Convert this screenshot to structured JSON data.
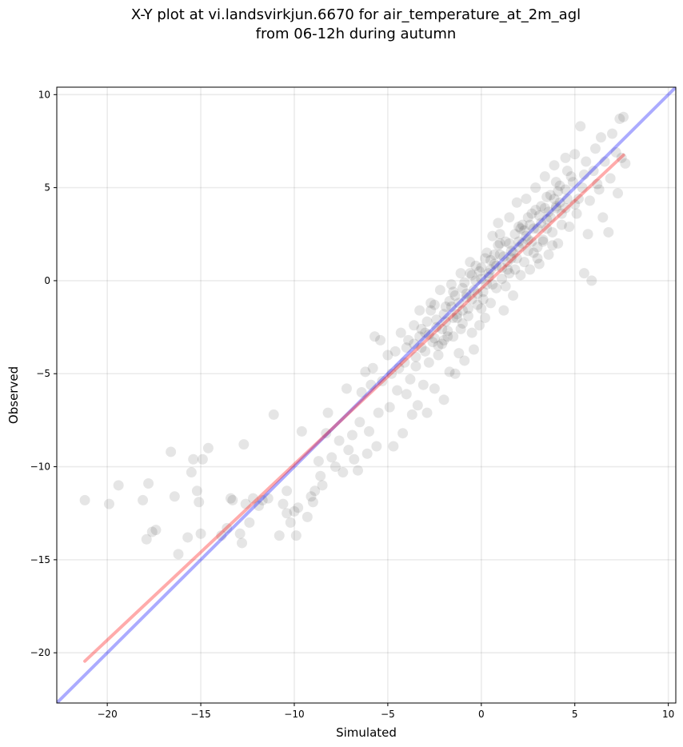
{
  "chart_data": {
    "type": "scatter",
    "title": [
      "X-Y plot at vi.landsvirkjun.6670 for air_temperature_at_2m_agl",
      "from 06-12h during autumn"
    ],
    "xlabel": "Simulated",
    "ylabel": "Observed",
    "xlim": [
      -22.7,
      10.4
    ],
    "ylim": [
      -22.7,
      10.4
    ],
    "xticks": [
      -20,
      -15,
      -10,
      -5,
      0,
      5,
      10
    ],
    "yticks": [
      -20,
      -15,
      -10,
      -5,
      0,
      5,
      10
    ],
    "xtick_labels": [
      "−20",
      "−15",
      "−10",
      "−5",
      "0",
      "5",
      "10"
    ],
    "ytick_labels": [
      "−20",
      "−15",
      "−10",
      "−5",
      "0",
      "5",
      "10"
    ],
    "grid": true,
    "point_color": "#000000",
    "point_alpha": 0.1,
    "reference_line": {
      "color": "#0000ff",
      "alpha": 0.33,
      "x": [
        -22.7,
        10.4
      ],
      "y": [
        -22.7,
        10.4
      ]
    },
    "fit_line": {
      "color": "#ff0000",
      "alpha": 0.33,
      "x": [
        -21.2,
        7.6
      ],
      "y": [
        -20.45,
        6.75
      ]
    },
    "points": [
      [
        -21.2,
        -11.8
      ],
      [
        -19.9,
        -12.0
      ],
      [
        -19.4,
        -11.0
      ],
      [
        -18.1,
        -11.8
      ],
      [
        -17.8,
        -10.9
      ],
      [
        -17.9,
        -13.9
      ],
      [
        -17.6,
        -13.5
      ],
      [
        -17.4,
        -13.4
      ],
      [
        -16.6,
        -9.2
      ],
      [
        -16.4,
        -11.6
      ],
      [
        -16.2,
        -14.7
      ],
      [
        -15.7,
        -13.8
      ],
      [
        -15.5,
        -10.3
      ],
      [
        -15.4,
        -9.6
      ],
      [
        -15.2,
        -11.3
      ],
      [
        -15.1,
        -11.9
      ],
      [
        -15.0,
        -13.6
      ],
      [
        -14.9,
        -9.6
      ],
      [
        -14.6,
        -9.0
      ],
      [
        -13.9,
        -13.7
      ],
      [
        -13.6,
        -13.3
      ],
      [
        -13.4,
        -11.7
      ],
      [
        -13.3,
        -11.8
      ],
      [
        -12.9,
        -13.6
      ],
      [
        -12.8,
        -14.1
      ],
      [
        -12.7,
        -8.8
      ],
      [
        -12.6,
        -12.0
      ],
      [
        -12.4,
        -13.0
      ],
      [
        -12.2,
        -11.7
      ],
      [
        -11.9,
        -12.1
      ],
      [
        -11.7,
        -11.8
      ],
      [
        -11.4,
        -11.7
      ],
      [
        -11.1,
        -7.2
      ],
      [
        -10.8,
        -13.7
      ],
      [
        -10.6,
        -12.0
      ],
      [
        -10.4,
        -11.3
      ],
      [
        -10.4,
        -12.5
      ],
      [
        -10.2,
        -13.0
      ],
      [
        -10.0,
        -12.4
      ],
      [
        -9.9,
        -13.7
      ],
      [
        -9.8,
        -12.2
      ],
      [
        -9.6,
        -8.1
      ],
      [
        -9.3,
        -12.7
      ],
      [
        -9.1,
        -11.6
      ],
      [
        -9.0,
        -11.9
      ],
      [
        -8.9,
        -11.3
      ],
      [
        -8.7,
        -9.7
      ],
      [
        -8.6,
        -10.5
      ],
      [
        -8.5,
        -11.0
      ],
      [
        -8.3,
        -8.2
      ],
      [
        -8.2,
        -7.1
      ],
      [
        -8.0,
        -9.5
      ],
      [
        -7.8,
        -10.0
      ],
      [
        -7.6,
        -8.6
      ],
      [
        -7.4,
        -10.3
      ],
      [
        -7.2,
        -5.8
      ],
      [
        -7.1,
        -9.1
      ],
      [
        -6.9,
        -8.3
      ],
      [
        -6.8,
        -9.6
      ],
      [
        -6.6,
        -10.2
      ],
      [
        -6.5,
        -7.6
      ],
      [
        -6.4,
        -6.0
      ],
      [
        -6.2,
        -4.9
      ],
      [
        -6.1,
        -9.3
      ],
      [
        -6.0,
        -8.1
      ],
      [
        -5.9,
        -5.6
      ],
      [
        -5.8,
        -4.7
      ],
      [
        -5.7,
        -3.0
      ],
      [
        -5.6,
        -8.9
      ],
      [
        -5.5,
        -7.1
      ],
      [
        -5.4,
        -3.2
      ],
      [
        -5.3,
        -5.4
      ],
      [
        -5.0,
        -4.0
      ],
      [
        -4.9,
        -6.8
      ],
      [
        -4.8,
        -5.0
      ],
      [
        -4.7,
        -8.9
      ],
      [
        -4.6,
        -3.8
      ],
      [
        -4.5,
        -5.9
      ],
      [
        -4.4,
        -4.7
      ],
      [
        -4.3,
        -2.8
      ],
      [
        -4.2,
        -8.2
      ],
      [
        -4.1,
        -4.4
      ],
      [
        -4.0,
        -6.1
      ],
      [
        -3.9,
        -3.2
      ],
      [
        -3.8,
        -5.3
      ],
      [
        -3.7,
        -7.2
      ],
      [
        -3.6,
        -2.4
      ],
      [
        -3.5,
        -4.1
      ],
      [
        -3.4,
        -6.7
      ],
      [
        -3.3,
        -1.6
      ],
      [
        -3.2,
        -3.6
      ],
      [
        -3.1,
        -5.6
      ],
      [
        -3.0,
        -2.8
      ],
      [
        -2.9,
        -7.1
      ],
      [
        -2.8,
        -4.4
      ],
      [
        -2.7,
        -1.2
      ],
      [
        -2.6,
        -3.3
      ],
      [
        -2.5,
        -5.8
      ],
      [
        -2.4,
        -2.1
      ],
      [
        -2.3,
        -4.0
      ],
      [
        -2.2,
        -0.5
      ],
      [
        -2.1,
        -3.4
      ],
      [
        -2.0,
        -6.4
      ],
      [
        -1.9,
        -1.4
      ],
      [
        -1.8,
        -2.7
      ],
      [
        -1.7,
        -4.9
      ],
      [
        -1.6,
        -0.2
      ],
      [
        -1.5,
        -3.0
      ],
      [
        -1.4,
        -5.0
      ],
      [
        -1.3,
        -1.8
      ],
      [
        -1.2,
        -3.9
      ],
      [
        -1.1,
        0.4
      ],
      [
        -1.0,
        -2.3
      ],
      [
        -0.9,
        -4.3
      ],
      [
        -0.8,
        -0.9
      ],
      [
        -0.7,
        -1.9
      ],
      [
        -0.6,
        1.0
      ],
      [
        -0.5,
        -2.8
      ],
      [
        -0.4,
        -3.7
      ],
      [
        -0.3,
        0.0
      ],
      [
        -0.2,
        -1.3
      ],
      [
        -0.1,
        -2.4
      ],
      [
        0.0,
        0.7
      ],
      [
        0.1,
        -0.6
      ],
      [
        0.2,
        -2.0
      ],
      [
        0.3,
        1.5
      ],
      [
        0.4,
        0.2
      ],
      [
        0.5,
        -1.2
      ],
      [
        0.6,
        2.4
      ],
      [
        0.7,
        0.9
      ],
      [
        0.8,
        -0.4
      ],
      [
        0.9,
        3.1
      ],
      [
        1.0,
        1.4
      ],
      [
        1.1,
        0.1
      ],
      [
        1.2,
        -1.6
      ],
      [
        1.3,
        2.1
      ],
      [
        1.4,
        0.6
      ],
      [
        1.5,
        3.4
      ],
      [
        1.6,
        1.2
      ],
      [
        1.7,
        -0.8
      ],
      [
        1.8,
        2.5
      ],
      [
        1.9,
        4.2
      ],
      [
        2.0,
        1.8
      ],
      [
        2.1,
        0.3
      ],
      [
        2.2,
        3.0
      ],
      [
        2.3,
        1.0
      ],
      [
        2.4,
        4.4
      ],
      [
        2.5,
        2.2
      ],
      [
        2.6,
        0.6
      ],
      [
        2.7,
        3.6
      ],
      [
        2.8,
        1.5
      ],
      [
        2.9,
        5.0
      ],
      [
        3.0,
        2.8
      ],
      [
        3.1,
        0.9
      ],
      [
        3.2,
        4.0
      ],
      [
        3.3,
        2.1
      ],
      [
        3.4,
        5.6
      ],
      [
        3.5,
        3.3
      ],
      [
        3.6,
        1.4
      ],
      [
        3.7,
        4.6
      ],
      [
        3.8,
        2.6
      ],
      [
        3.9,
        6.2
      ],
      [
        4.0,
        3.9
      ],
      [
        4.1,
        2.0
      ],
      [
        4.2,
        5.1
      ],
      [
        4.3,
        3.0
      ],
      [
        4.5,
        6.6
      ],
      [
        4.6,
        4.4
      ],
      [
        4.7,
        2.9
      ],
      [
        4.8,
        5.6
      ],
      [
        5.0,
        6.8
      ],
      [
        5.1,
        3.6
      ],
      [
        5.3,
        8.3
      ],
      [
        5.4,
        5.0
      ],
      [
        5.5,
        0.4
      ],
      [
        5.7,
        2.5
      ],
      [
        5.8,
        4.3
      ],
      [
        5.9,
        0.0
      ],
      [
        6.0,
        5.9
      ],
      [
        6.1,
        7.1
      ],
      [
        6.3,
        4.9
      ],
      [
        6.4,
        7.7
      ],
      [
        6.5,
        3.4
      ],
      [
        6.6,
        6.4
      ],
      [
        6.8,
        2.6
      ],
      [
        6.9,
        5.5
      ],
      [
        7.0,
        7.9
      ],
      [
        7.2,
        6.9
      ],
      [
        7.3,
        4.7
      ],
      [
        7.4,
        8.7
      ],
      [
        7.5,
        6.6
      ],
      [
        7.6,
        8.8
      ],
      [
        7.7,
        6.3
      ],
      [
        -3.6,
        -3.4
      ],
      [
        -3.2,
        -2.6
      ],
      [
        -2.8,
        -2.9
      ],
      [
        -2.4,
        -2.5
      ],
      [
        -2.0,
        -1.8
      ],
      [
        -1.6,
        -1.4
      ],
      [
        -1.2,
        -1.2
      ],
      [
        -0.8,
        -0.7
      ],
      [
        -0.4,
        -0.5
      ],
      [
        0.0,
        0.1
      ],
      [
        0.4,
        0.4
      ],
      [
        0.8,
        0.8
      ],
      [
        1.2,
        1.3
      ],
      [
        1.6,
        1.6
      ],
      [
        2.0,
        2.1
      ],
      [
        2.4,
        2.4
      ],
      [
        2.8,
        2.8
      ],
      [
        3.2,
        3.1
      ],
      [
        3.6,
        3.7
      ],
      [
        4.0,
        4.0
      ],
      [
        -3.3,
        -3.0
      ],
      [
        -2.9,
        -2.2
      ],
      [
        -2.5,
        -3.1
      ],
      [
        -2.1,
        -2.6
      ],
      [
        -1.7,
        -1.1
      ],
      [
        -1.3,
        -2.0
      ],
      [
        -0.9,
        -0.1
      ],
      [
        -0.5,
        -1.0
      ],
      [
        -0.1,
        0.5
      ],
      [
        0.3,
        -0.2
      ],
      [
        0.7,
        1.4
      ],
      [
        1.1,
        0.7
      ],
      [
        1.5,
        2.0
      ],
      [
        1.9,
        1.2
      ],
      [
        2.3,
        2.7
      ],
      [
        2.7,
        2.1
      ],
      [
        3.1,
        3.5
      ],
      [
        3.5,
        2.8
      ],
      [
        3.9,
        4.4
      ],
      [
        4.3,
        3.6
      ],
      [
        -2.7,
        -1.6
      ],
      [
        -2.3,
        -3.5
      ],
      [
        -1.9,
        -2.2
      ],
      [
        -1.5,
        -0.6
      ],
      [
        -1.1,
        -2.6
      ],
      [
        -0.7,
        -1.5
      ],
      [
        -0.3,
        0.8
      ],
      [
        0.1,
        -1.0
      ],
      [
        0.5,
        0.6
      ],
      [
        0.9,
        1.9
      ],
      [
        1.3,
        -0.3
      ],
      [
        1.7,
        1.5
      ],
      [
        2.1,
        2.8
      ],
      [
        2.5,
        1.6
      ],
      [
        2.9,
        3.8
      ],
      [
        3.3,
        2.2
      ],
      [
        3.7,
        3.4
      ],
      [
        4.1,
        4.8
      ],
      [
        4.5,
        3.9
      ],
      [
        4.9,
        5.3
      ],
      [
        -4.0,
        -3.6
      ],
      [
        -3.5,
        -4.6
      ],
      [
        -3.0,
        -3.8
      ],
      [
        -2.5,
        -1.3
      ],
      [
        -2.0,
        -3.2
      ],
      [
        -1.5,
        -2.0
      ],
      [
        -1.0,
        -0.4
      ],
      [
        -0.5,
        0.3
      ],
      [
        0.0,
        -1.5
      ],
      [
        0.5,
        1.1
      ],
      [
        1.0,
        2.5
      ],
      [
        1.5,
        0.4
      ],
      [
        2.0,
        2.9
      ],
      [
        2.5,
        3.4
      ],
      [
        3.0,
        1.8
      ],
      [
        3.5,
        4.5
      ],
      [
        4.0,
        5.3
      ],
      [
        4.5,
        4.9
      ],
      [
        5.0,
        4.1
      ],
      [
        5.5,
        5.7
      ],
      [
        -1.8,
        -3.0
      ],
      [
        -1.4,
        -0.8
      ],
      [
        -1.0,
        -1.6
      ],
      [
        -0.6,
        0.4
      ],
      [
        -0.2,
        -0.7
      ],
      [
        0.2,
        1.2
      ],
      [
        0.6,
        -0.2
      ],
      [
        1.0,
        2.0
      ],
      [
        1.4,
        1.0
      ],
      [
        1.8,
        0.6
      ],
      [
        2.2,
        2.0
      ],
      [
        2.6,
        3.0
      ],
      [
        3.0,
        1.2
      ],
      [
        3.4,
        3.9
      ],
      [
        3.8,
        1.9
      ],
      [
        4.2,
        4.2
      ],
      [
        4.6,
        5.9
      ],
      [
        5.2,
        4.4
      ],
      [
        5.6,
        6.4
      ],
      [
        6.2,
        5.2
      ]
    ]
  }
}
